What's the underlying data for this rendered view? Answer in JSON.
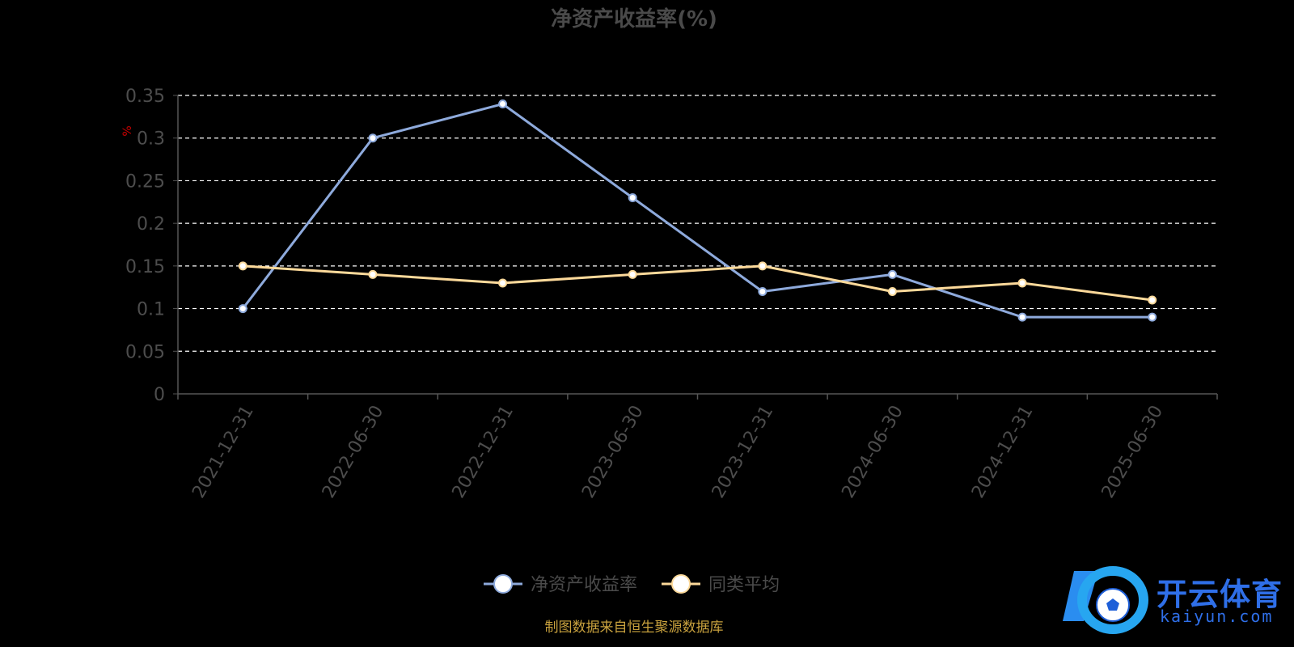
{
  "chart_data": {
    "type": "line",
    "title": "净资产收益率(%)",
    "ylabel": "%",
    "categories": [
      "2021-12-31",
      "2022-06-30",
      "2022-12-31",
      "2023-06-30",
      "2023-12-31",
      "2024-06-30",
      "2024-12-31",
      "2025-06-30"
    ],
    "series": [
      {
        "name": "净资产收益率",
        "values": [
          0.1,
          0.3,
          0.34,
          0.23,
          0.12,
          0.14,
          0.09,
          0.09
        ],
        "color": "#8eaadc"
      },
      {
        "name": "同类平均",
        "values": [
          0.15,
          0.14,
          0.13,
          0.14,
          0.15,
          0.12,
          0.13,
          0.11
        ],
        "color": "#fcd99a"
      }
    ],
    "yticks": [
      "0",
      "0.05",
      "0.1",
      "0.15",
      "0.2",
      "0.25",
      "0.3",
      "0.35"
    ],
    "ylim": [
      0,
      0.35
    ],
    "grid": true,
    "legend_position": "bottom-center"
  },
  "source_note": "制图数据来自恒生聚源数据库",
  "logo": {
    "text_cn": "开云体育",
    "text_en": "kaiyun.com",
    "color": "#2f6fe8",
    "icon": "soccer-ball-icon"
  },
  "colors": {
    "title": "#4a4a4a",
    "axis": "#555555",
    "tick_label": "#4d4d4d",
    "ylabel": "#cc0000",
    "grid": "#ffffff",
    "source": "#c9a23e"
  }
}
